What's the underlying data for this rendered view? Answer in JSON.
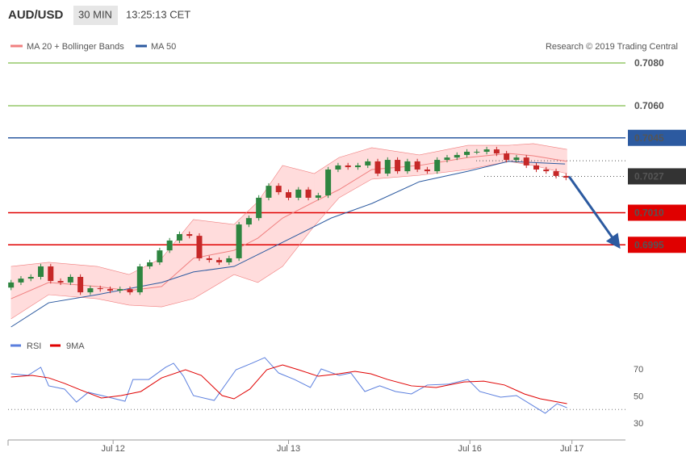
{
  "chart_data": [
    {
      "type": "candlestick",
      "title": "AUD/USD",
      "timeframe": "30 MIN",
      "time": "13:25:13 CET",
      "credit": "Research © 2019 Trading Central",
      "xlim": [
        -0.3,
        62
      ],
      "ylim": [
        0.6955,
        0.7094
      ],
      "up_color": "#2e8540",
      "down_color": "#c62828",
      "candles": [
        [
          0.6975,
          0.69786,
          0.69738,
          0.69774
        ],
        [
          0.69774,
          0.69804,
          0.69762,
          0.69792
        ],
        [
          0.69792,
          0.69812,
          0.6978,
          0.698
        ],
        [
          0.698,
          0.69861,
          0.69788,
          0.69849
        ],
        [
          0.69849,
          0.69861,
          0.69769,
          0.69781
        ],
        [
          0.69781,
          0.69793,
          0.69762,
          0.69774
        ],
        [
          0.69774,
          0.69812,
          0.69762,
          0.698
        ],
        [
          0.698,
          0.69812,
          0.69716,
          0.69728
        ],
        [
          0.69728,
          0.69759,
          0.69716,
          0.69747
        ],
        [
          0.69747,
          0.69759,
          0.69731,
          0.69743
        ],
        [
          0.69743,
          0.69755,
          0.69724,
          0.69736
        ],
        [
          0.69736,
          0.69755,
          0.69724,
          0.69743
        ],
        [
          0.69743,
          0.69755,
          0.69716,
          0.69728
        ],
        [
          0.69728,
          0.69861,
          0.69716,
          0.69849
        ],
        [
          0.69849,
          0.6988,
          0.69837,
          0.69868
        ],
        [
          0.69868,
          0.69936,
          0.69856,
          0.69924
        ],
        [
          0.69924,
          0.69982,
          0.69912,
          0.6997
        ],
        [
          0.6997,
          0.70012,
          0.69958,
          0.7
        ],
        [
          0.7,
          0.70012,
          0.6998,
          0.69992
        ],
        [
          0.69992,
          0.70004,
          0.69875,
          0.69887
        ],
        [
          0.69887,
          0.69899,
          0.69867,
          0.69879
        ],
        [
          0.69879,
          0.69891,
          0.69856,
          0.69868
        ],
        [
          0.69868,
          0.69899,
          0.69856,
          0.69887
        ],
        [
          0.69887,
          0.70057,
          0.69875,
          0.70045
        ],
        [
          0.70045,
          0.70087,
          0.70033,
          0.70075
        ],
        [
          0.70075,
          0.70182,
          0.70063,
          0.7017
        ],
        [
          0.7017,
          0.70238,
          0.70158,
          0.70226
        ],
        [
          0.70226,
          0.70238,
          0.70184,
          0.70196
        ],
        [
          0.70196,
          0.70208,
          0.70158,
          0.7017
        ],
        [
          0.7017,
          0.7022,
          0.70158,
          0.70208
        ],
        [
          0.70208,
          0.7022,
          0.70158,
          0.7017
        ],
        [
          0.7017,
          0.70193,
          0.70158,
          0.70181
        ],
        [
          0.70181,
          0.70314,
          0.70169,
          0.70302
        ],
        [
          0.70302,
          0.70333,
          0.7029,
          0.70321
        ],
        [
          0.70321,
          0.70333,
          0.70301,
          0.70313
        ],
        [
          0.70313,
          0.70333,
          0.70301,
          0.70321
        ],
        [
          0.70321,
          0.70352,
          0.70309,
          0.7034
        ],
        [
          0.7034,
          0.70352,
          0.70271,
          0.70283
        ],
        [
          0.70283,
          0.70359,
          0.70271,
          0.70347
        ],
        [
          0.70347,
          0.70359,
          0.70282,
          0.70294
        ],
        [
          0.70294,
          0.70352,
          0.70282,
          0.7034
        ],
        [
          0.7034,
          0.70352,
          0.7029,
          0.70302
        ],
        [
          0.70302,
          0.70314,
          0.70282,
          0.70294
        ],
        [
          0.70294,
          0.70359,
          0.70282,
          0.70347
        ],
        [
          0.70347,
          0.7037,
          0.70335,
          0.70358
        ],
        [
          0.70358,
          0.70382,
          0.70346,
          0.7037
        ],
        [
          0.7037,
          0.70397,
          0.70358,
          0.70385
        ],
        [
          0.70385,
          0.70397,
          0.70373,
          0.70385
        ],
        [
          0.70385,
          0.70408,
          0.70373,
          0.70396
        ],
        [
          0.70396,
          0.70408,
          0.70365,
          0.70377
        ],
        [
          0.70377,
          0.70389,
          0.70335,
          0.70347
        ],
        [
          0.70347,
          0.7037,
          0.70335,
          0.70358
        ],
        [
          0.70358,
          0.7037,
          0.70309,
          0.70321
        ],
        [
          0.70321,
          0.70333,
          0.7029,
          0.70302
        ],
        [
          0.70302,
          0.70314,
          0.70282,
          0.70294
        ],
        [
          0.70294,
          0.70306,
          0.7026,
          0.70272
        ],
        [
          0.70272,
          0.70284,
          0.70252,
          0.70264
        ]
      ],
      "bands": {
        "name": "MA 20 + Bollinger Bands",
        "color": "#f08080",
        "fill": "#ffdcdc",
        "x": [
          0,
          3.8,
          8.7,
          11.9,
          15.2,
          18.4,
          22.5,
          24.9,
          27.4,
          30.6,
          33.1,
          36.4,
          41.2,
          46.1,
          50.2,
          52.7,
          56.1
        ],
        "upper": [
          0.69849,
          0.69868,
          0.69849,
          0.69811,
          0.69887,
          0.70068,
          0.70045,
          0.70151,
          0.70321,
          0.70283,
          0.70358,
          0.70404,
          0.7037,
          0.70415,
          0.70415,
          0.70423,
          0.70396
        ],
        "middle": [
          0.69698,
          0.69774,
          0.69755,
          0.69736,
          0.69755,
          0.69887,
          0.69924,
          0.69981,
          0.70075,
          0.70151,
          0.70208,
          0.70302,
          0.70321,
          0.70358,
          0.70377,
          0.70366,
          0.7034
        ],
        "lower": [
          0.69604,
          0.69717,
          0.69698,
          0.69668,
          0.6966,
          0.69698,
          0.69811,
          0.69774,
          0.69849,
          0.70038,
          0.7017,
          0.70257,
          0.70275,
          0.70302,
          0.7034,
          0.70321,
          0.70283
        ]
      },
      "ma50": {
        "name": "MA 50",
        "color": "#2c5aa0",
        "x": [
          0,
          3.8,
          8.7,
          15.2,
          18.4,
          22.5,
          26.6,
          32.3,
          36.4,
          41.2,
          46.1,
          50.2,
          55.9
        ],
        "values": [
          0.69566,
          0.69679,
          0.69717,
          0.69774,
          0.69823,
          0.69849,
          0.69943,
          0.70075,
          0.70143,
          0.70245,
          0.70294,
          0.7034,
          0.70328
        ]
      },
      "levels": [
        {
          "value": 0.708,
          "label": "0.7080",
          "color": "#5fae1e",
          "boxed": false
        },
        {
          "value": 0.706,
          "label": "0.7060",
          "color": "#5fae1e",
          "boxed": false
        },
        {
          "value": 0.7045,
          "label": "0.7045",
          "color": "#2c5aa0",
          "boxed": true
        },
        {
          "value": 0.701,
          "label": "0.7010",
          "color": "#e00000",
          "boxed": true
        },
        {
          "value": 0.6995,
          "label": "0.6995",
          "color": "#e00000",
          "boxed": true
        }
      ],
      "last_price": {
        "value": 0.7027,
        "label": "0.7027",
        "color": "#333333"
      },
      "dotted_levels": [
        0.70343
      ],
      "arrow": {
        "color": "#2c5aa0",
        "from": [
          56.3,
          0.7027
        ],
        "to": [
          61.2,
          0.6995
        ]
      }
    },
    {
      "type": "line",
      "xlim": [
        -0.3,
        62
      ],
      "ylim": [
        20,
        80
      ],
      "yticks": [
        30,
        50,
        70
      ],
      "reference_level": 40,
      "xticks": [
        {
          "value": 10.3,
          "label": "Jul 12"
        },
        {
          "value": 28,
          "label": "Jul 13"
        },
        {
          "value": 46.3,
          "label": "Jul 16"
        },
        {
          "value": 56.6,
          "label": "Jul 17"
        }
      ],
      "series": [
        {
          "name": "RSI",
          "color": "#5b7fde",
          "x": [
            0,
            1.7,
            3.0,
            3.8,
            5.4,
            6.6,
            7.8,
            9.5,
            11.5,
            12.3,
            13.9,
            15.6,
            16.4,
            17.4,
            18.4,
            20.5,
            22.7,
            24.3,
            25.6,
            27.0,
            28.6,
            30.2,
            31.3,
            33.1,
            34.3,
            35.7,
            37.2,
            38.8,
            40.4,
            42.0,
            44.1,
            46.1,
            47.3,
            49.4,
            51.0,
            52.6,
            53.9,
            55.1,
            56.1
          ],
          "values": [
            66.4,
            65.2,
            71.2,
            57.5,
            55.1,
            45.5,
            52.7,
            49.7,
            46.1,
            62.2,
            62.2,
            71.2,
            74.2,
            64.6,
            50.3,
            46.7,
            69.4,
            74.2,
            78.4,
            67.0,
            62.2,
            56.3,
            70.0,
            65.2,
            67.0,
            53.3,
            57.5,
            53.3,
            51.5,
            58.1,
            58.7,
            62.2,
            53.3,
            49.1,
            50.3,
            43.1,
            37.2,
            44.3,
            41.3
          ]
        },
        {
          "name": "9MA",
          "color": "#e00000",
          "x": [
            0,
            2.1,
            3.8,
            5.4,
            7.0,
            9.1,
            11.1,
            13.1,
            15.2,
            17.6,
            19.2,
            21.3,
            22.5,
            24.1,
            25.8,
            27.4,
            29.0,
            31.0,
            33.1,
            34.7,
            36.3,
            38.0,
            40.4,
            42.9,
            45.7,
            47.7,
            49.8,
            51.8,
            53.4,
            56.1
          ],
          "values": [
            64.0,
            65.2,
            63.4,
            59.3,
            54.5,
            48.5,
            50.3,
            53.3,
            63.4,
            69.4,
            65.2,
            50.3,
            47.9,
            55.1,
            69.4,
            73.0,
            69.4,
            64.6,
            66.4,
            68.2,
            66.4,
            62.2,
            57.5,
            56.3,
            60.4,
            61.0,
            58.1,
            51.5,
            47.9,
            44.3
          ]
        }
      ]
    }
  ]
}
